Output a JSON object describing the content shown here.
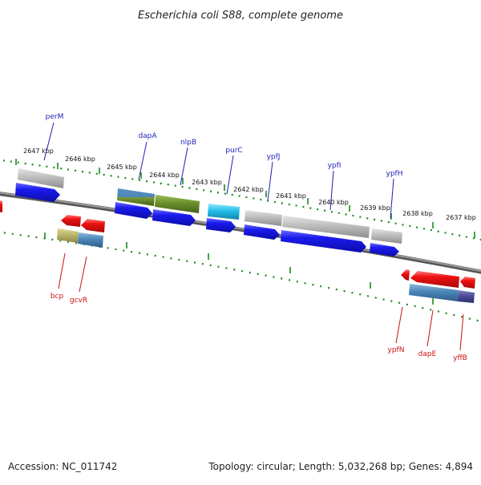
{
  "title": "Escherichia coli S88, complete genome",
  "footer": {
    "accession": "Accession: NC_011742",
    "summary": "Topology: circular; Length: 5,032,268 bp; Genes: 4,894"
  },
  "scale_labels": [
    "2647 kbp",
    "2646 kbp",
    "2645 kbp",
    "2644 kbp",
    "2643 kbp",
    "2642 kbp",
    "2641 kbp",
    "2640 kbp",
    "2639 kbp",
    "2638 kbp",
    "2637 kbp"
  ],
  "genes_top": [
    "perM",
    "dapA",
    "nlpB",
    "purC",
    "ypfJ",
    "ypfI",
    "ypfH"
  ],
  "genes_bottom": [
    "bcp",
    "gcvR",
    "ypfN",
    "dapE",
    "yffB"
  ],
  "colors": {
    "cds_forward": "#1a1aee",
    "cds_reverse": "#ee1111",
    "backbone": "#777777",
    "tick": "#1b8a1b",
    "feature_grey": "#bdbdbd",
    "feature_steelblue": "#4a86b8",
    "feature_olive": "#6b8f2a",
    "feature_cyan": "#22bfe8",
    "feature_khaki": "#b9b46a",
    "feature_slate": "#4b4b9a",
    "top_label": "#1f1fb4",
    "bottom_label": "#cc1111"
  }
}
